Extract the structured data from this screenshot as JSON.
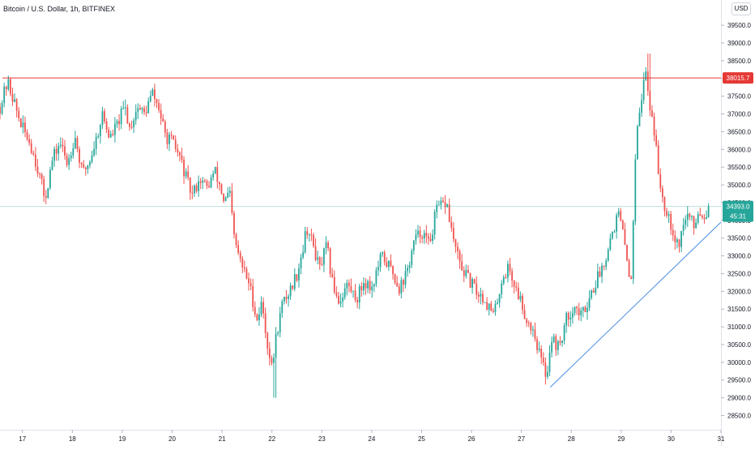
{
  "header": {
    "title": "Bitcoin / U.S. Dollar, 1h, BITFINEX",
    "currency": "USD"
  },
  "colors": {
    "up": "#26a69a",
    "down": "#ef5350",
    "resistance": "#e53935",
    "trendline": "#4a90e2",
    "price_line": "#26a69a",
    "axis_text": "#131722",
    "axis_line": "#e0e3eb"
  },
  "chart_data": {
    "type": "candlestick",
    "interval": "1h",
    "x_ticks": [
      "17",
      "18",
      "19",
      "20",
      "21",
      "22",
      "23",
      "24",
      "25",
      "26",
      "27",
      "28",
      "29",
      "30",
      "31"
    ],
    "y_ticks": [
      28500,
      29000,
      29500,
      30000,
      30500,
      31000,
      31500,
      32000,
      32500,
      33000,
      33500,
      34000,
      34500,
      35000,
      35500,
      36000,
      36500,
      37000,
      37500,
      38000,
      38500,
      39000,
      39500
    ],
    "y_tick_labels": [
      "28500.0",
      "29000.0",
      "29500.0",
      "30000.0",
      "30500.0",
      "31000.0",
      "31500.0",
      "32000.0",
      "32500.0",
      "33000.0",
      "33500.0",
      "34000.0",
      "34500.0",
      "35000.0",
      "35500.0",
      "36000.0",
      "36500.0",
      "37000.0",
      "37500.0",
      "38000.0",
      "38500.0",
      "39000.0",
      "39500.0"
    ],
    "ylim": [
      28100,
      39800
    ],
    "xlim": [
      16.55,
      31.0
    ],
    "close_path": [
      [
        16.55,
        37200
      ],
      [
        16.7,
        37900
      ],
      [
        16.8,
        37500
      ],
      [
        16.9,
        37000
      ],
      [
        17.0,
        36600
      ],
      [
        17.15,
        36200
      ],
      [
        17.3,
        35500
      ],
      [
        17.45,
        34600
      ],
      [
        17.6,
        35700
      ],
      [
        17.75,
        36200
      ],
      [
        17.9,
        35600
      ],
      [
        18.05,
        36400
      ],
      [
        18.2,
        35300
      ],
      [
        18.35,
        35700
      ],
      [
        18.5,
        36400
      ],
      [
        18.6,
        37000
      ],
      [
        18.75,
        36300
      ],
      [
        18.9,
        36700
      ],
      [
        19.05,
        37200
      ],
      [
        19.15,
        36600
      ],
      [
        19.3,
        37200
      ],
      [
        19.45,
        37000
      ],
      [
        19.6,
        37600
      ],
      [
        19.75,
        37100
      ],
      [
        19.85,
        36400
      ],
      [
        20.0,
        36200
      ],
      [
        20.15,
        35800
      ],
      [
        20.3,
        35100
      ],
      [
        20.4,
        34700
      ],
      [
        20.55,
        35200
      ],
      [
        20.7,
        34900
      ],
      [
        20.85,
        35400
      ],
      [
        20.95,
        35000
      ],
      [
        21.05,
        34500
      ],
      [
        21.15,
        34800
      ],
      [
        21.25,
        33400
      ],
      [
        21.4,
        32700
      ],
      [
        21.55,
        32200
      ],
      [
        21.7,
        31200
      ],
      [
        21.8,
        31700
      ],
      [
        21.9,
        30600
      ],
      [
        22.0,
        29800
      ],
      [
        22.08,
        30700
      ],
      [
        22.2,
        31600
      ],
      [
        22.35,
        32000
      ],
      [
        22.5,
        32500
      ],
      [
        22.6,
        33100
      ],
      [
        22.7,
        33800
      ],
      [
        22.85,
        33200
      ],
      [
        22.95,
        32600
      ],
      [
        23.1,
        33300
      ],
      [
        23.2,
        32300
      ],
      [
        23.35,
        31700
      ],
      [
        23.5,
        32200
      ],
      [
        23.7,
        31800
      ],
      [
        23.85,
        32300
      ],
      [
        24.0,
        32100
      ],
      [
        24.2,
        33000
      ],
      [
        24.4,
        32600
      ],
      [
        24.55,
        32100
      ],
      [
        24.7,
        32500
      ],
      [
        24.85,
        33400
      ],
      [
        25.0,
        33700
      ],
      [
        25.15,
        33300
      ],
      [
        25.3,
        34300
      ],
      [
        25.5,
        34500
      ],
      [
        25.6,
        33700
      ],
      [
        25.75,
        32800
      ],
      [
        25.95,
        32300
      ],
      [
        26.1,
        32000
      ],
      [
        26.25,
        31800
      ],
      [
        26.45,
        31300
      ],
      [
        26.6,
        32300
      ],
      [
        26.75,
        32700
      ],
      [
        26.85,
        32200
      ],
      [
        27.0,
        31700
      ],
      [
        27.1,
        31200
      ],
      [
        27.25,
        30900
      ],
      [
        27.35,
        30300
      ],
      [
        27.5,
        29600
      ],
      [
        27.6,
        30700
      ],
      [
        27.75,
        30400
      ],
      [
        27.9,
        31200
      ],
      [
        28.05,
        31600
      ],
      [
        28.2,
        31300
      ],
      [
        28.35,
        31800
      ],
      [
        28.5,
        32300
      ],
      [
        28.65,
        32800
      ],
      [
        28.8,
        33600
      ],
      [
        28.95,
        34200
      ],
      [
        29.05,
        33500
      ],
      [
        29.2,
        32200
      ],
      [
        29.3,
        36600
      ],
      [
        29.4,
        37400
      ],
      [
        29.5,
        38300
      ],
      [
        29.55,
        37400
      ],
      [
        29.65,
        36700
      ],
      [
        29.75,
        35300
      ],
      [
        29.85,
        34500
      ],
      [
        29.95,
        34200
      ],
      [
        30.05,
        33600
      ],
      [
        30.15,
        33300
      ],
      [
        30.25,
        33900
      ],
      [
        30.35,
        34200
      ],
      [
        30.45,
        33800
      ],
      [
        30.55,
        34300
      ],
      [
        30.65,
        34100
      ],
      [
        30.75,
        34393
      ]
    ],
    "extremes": {
      "low_date": 22.05,
      "low_price": 29000,
      "high_date": 29.55,
      "high_price": 38700
    },
    "resistance": {
      "price": 38015.7,
      "label": "38015.7"
    },
    "trendline": {
      "from": [
        27.58,
        29300
      ],
      "to": [
        31.0,
        33950
      ]
    },
    "last_price": {
      "price": 34393.0,
      "label": "34393.0",
      "countdown": "45:31"
    },
    "grid": false
  }
}
